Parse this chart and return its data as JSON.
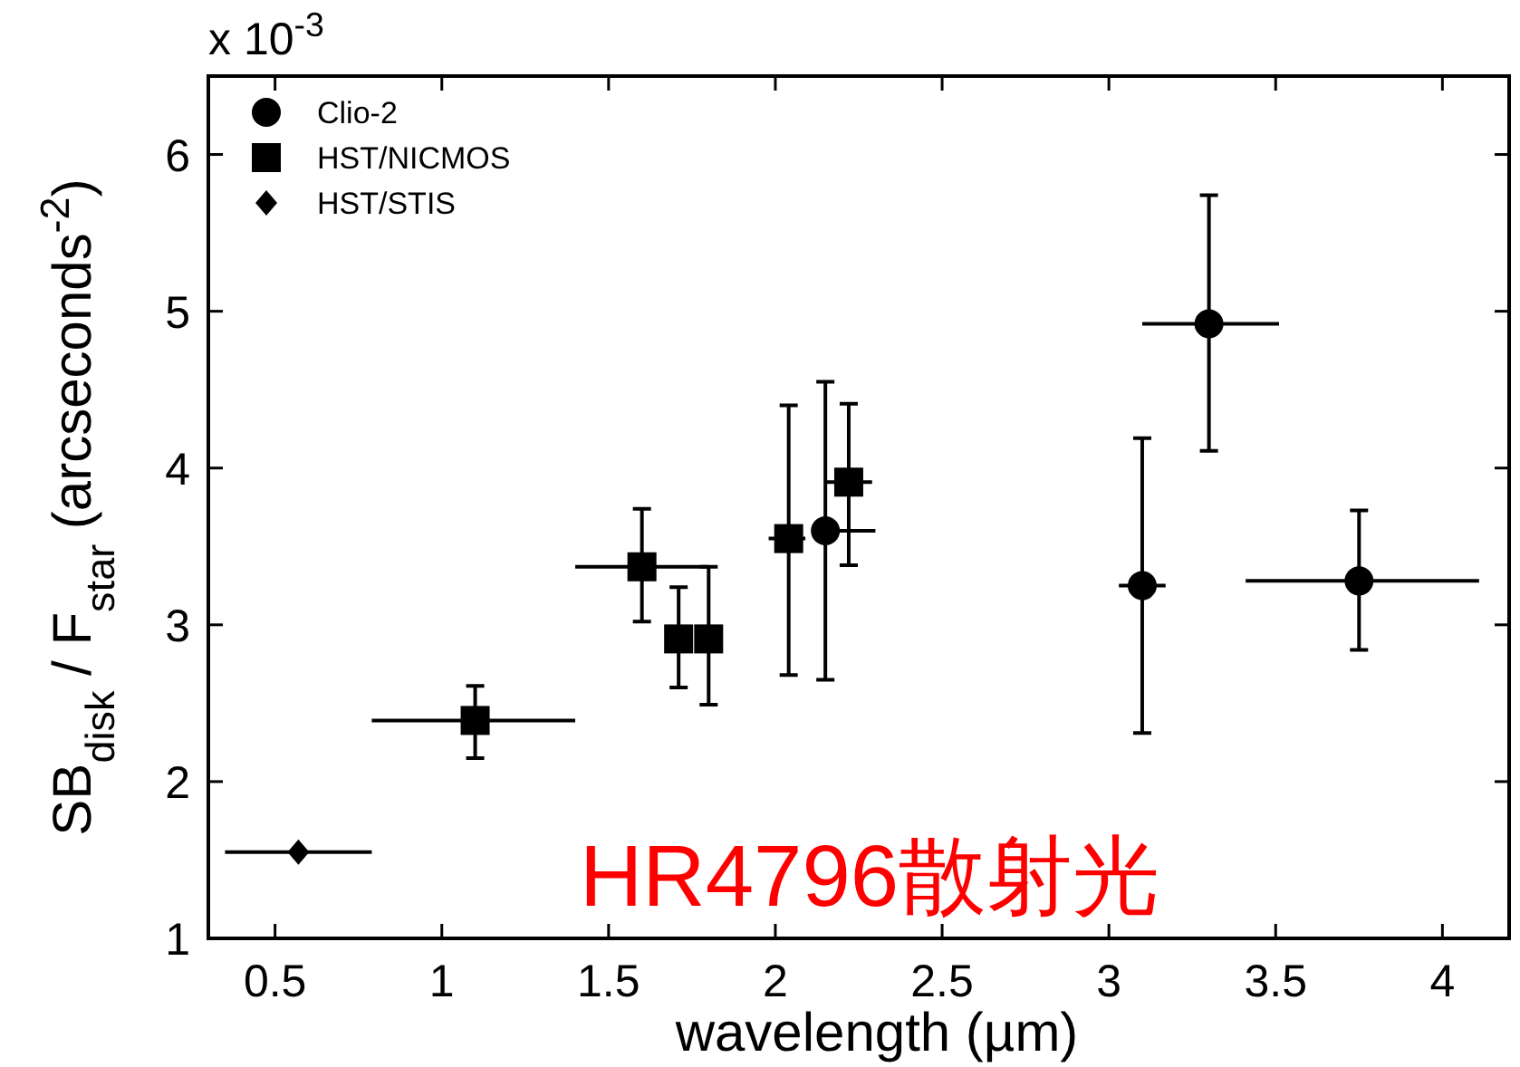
{
  "chart_data": {
    "type": "scatter",
    "xlabel": "wavelength (µm)",
    "ylabel": "SB$_{disk}$ / F$_{star}$ (arcseconds$^{-2}$)",
    "annotations": [
      "x 10$^{-3}$",
      "HR4796散射光"
    ],
    "xlim": [
      0.3,
      4.2
    ],
    "ylim": [
      1,
      6.5
    ],
    "xticks": [
      0.5,
      1,
      1.5,
      2,
      2.5,
      3,
      3.5,
      4
    ],
    "yticks": [
      1,
      2,
      3,
      4,
      5,
      6
    ],
    "grid": false,
    "legend": "top left",
    "series": [
      {
        "name": "Clio-2",
        "color": "#000000",
        "marker": "circle",
        "x": [
          2.15,
          3.1,
          3.3,
          3.75
        ],
        "values": [
          3.6,
          3.25,
          4.92,
          3.28
        ],
        "errors": [
          [
            2.65,
            4.55
          ],
          [
            2.31,
            4.19
          ],
          [
            4.11,
            5.74
          ],
          [
            2.84,
            3.73
          ]
        ],
        "xerrors": [
          [
            2.15,
            2.3
          ],
          [
            3.03,
            3.17
          ],
          [
            3.1,
            3.51
          ],
          [
            3.41,
            4.11
          ]
        ]
      },
      {
        "name": "HST/NICMOS",
        "color": "#000000",
        "marker": "square",
        "x": [
          1.1,
          1.6,
          1.71,
          1.8,
          2.04,
          2.22
        ],
        "values": [
          2.39,
          3.37,
          2.91,
          2.91,
          3.55,
          3.91
        ],
        "errors": [
          [
            2.15,
            2.61
          ],
          [
            3.02,
            3.74
          ],
          [
            2.6,
            3.24
          ],
          [
            2.49,
            3.37
          ],
          [
            2.68,
            4.4
          ],
          [
            3.38,
            4.41
          ]
        ],
        "xerrors": [
          [
            0.79,
            1.4
          ],
          [
            1.4,
            1.8
          ],
          null,
          null,
          [
            1.98,
            2.09
          ],
          [
            2.15,
            2.29
          ]
        ]
      },
      {
        "name": "HST/STIS",
        "color": "#000000",
        "marker": "diamond",
        "x": [
          0.57
        ],
        "values": [
          1.55
        ],
        "xerrors": [
          [
            0.35,
            0.79
          ]
        ]
      }
    ]
  }
}
